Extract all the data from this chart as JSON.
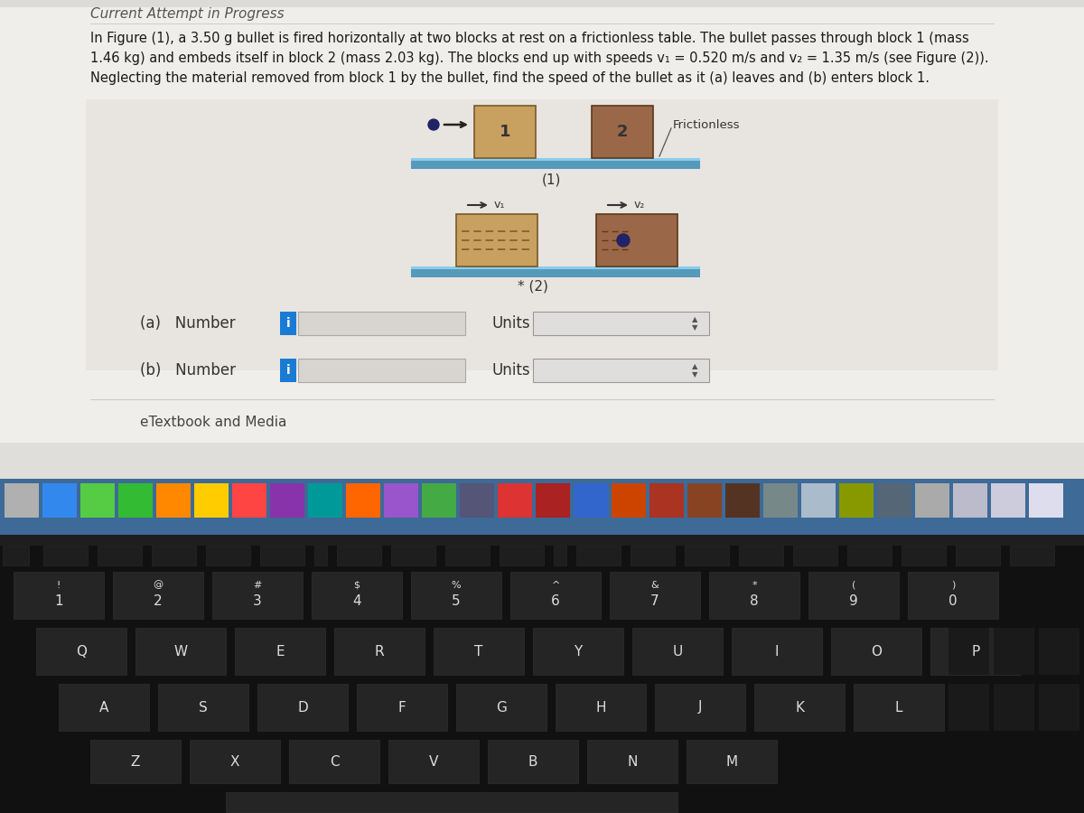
{
  "bg_upper": "#e8e5e0",
  "bg_screen_light": "#eceae6",
  "title": "Current Attempt in Progress",
  "problem_text_line1": "In Figure (1), a 3.50 g bullet is fired horizontally at two blocks at rest on a frictionless table. The bullet passes through block 1 (mass",
  "problem_text_line2": "1.46 kg) and embeds itself in block 2 (mass 2.03 kg). The blocks end up with speeds v₁ = 0.520 m/s and v₂ = 1.35 m/s (see Figure (2)).",
  "problem_text_line3": "Neglecting the material removed from block 1 by the bullet, find the speed of the bullet as it (a) leaves and (b) enters block 1.",
  "fig1_label": "(1)",
  "fig2_label": "* (2)",
  "frictionless_label": "Frictionless",
  "block1_label": "1",
  "block2_label": "2",
  "v1_label": "v₁",
  "v2_label": "v₂",
  "a_label": "(a)   Number",
  "b_label": "(b)   Number",
  "units_label": "Units",
  "etextbook_label": "eTextbook and Media",
  "block1_color_fig1": "#c8a060",
  "block2_color_fig1": "#9a6848",
  "block1_color_fig2": "#c8a060",
  "block2_color_fig2": "#9a6848",
  "table_color_top": "#88ccee",
  "table_color_main": "#5599bb",
  "bullet_color": "#222266",
  "dock_color": "#3d6a96",
  "keyboard_color": "#111111",
  "key_color": "#252525",
  "key_text": "#dddddd",
  "input_box_color": "#d8d5d0",
  "input_box_edge": "#aaaaaa",
  "units_box_color": "#e0dedd",
  "units_box_edge": "#999999",
  "ibtn_color": "#1a7bd4"
}
